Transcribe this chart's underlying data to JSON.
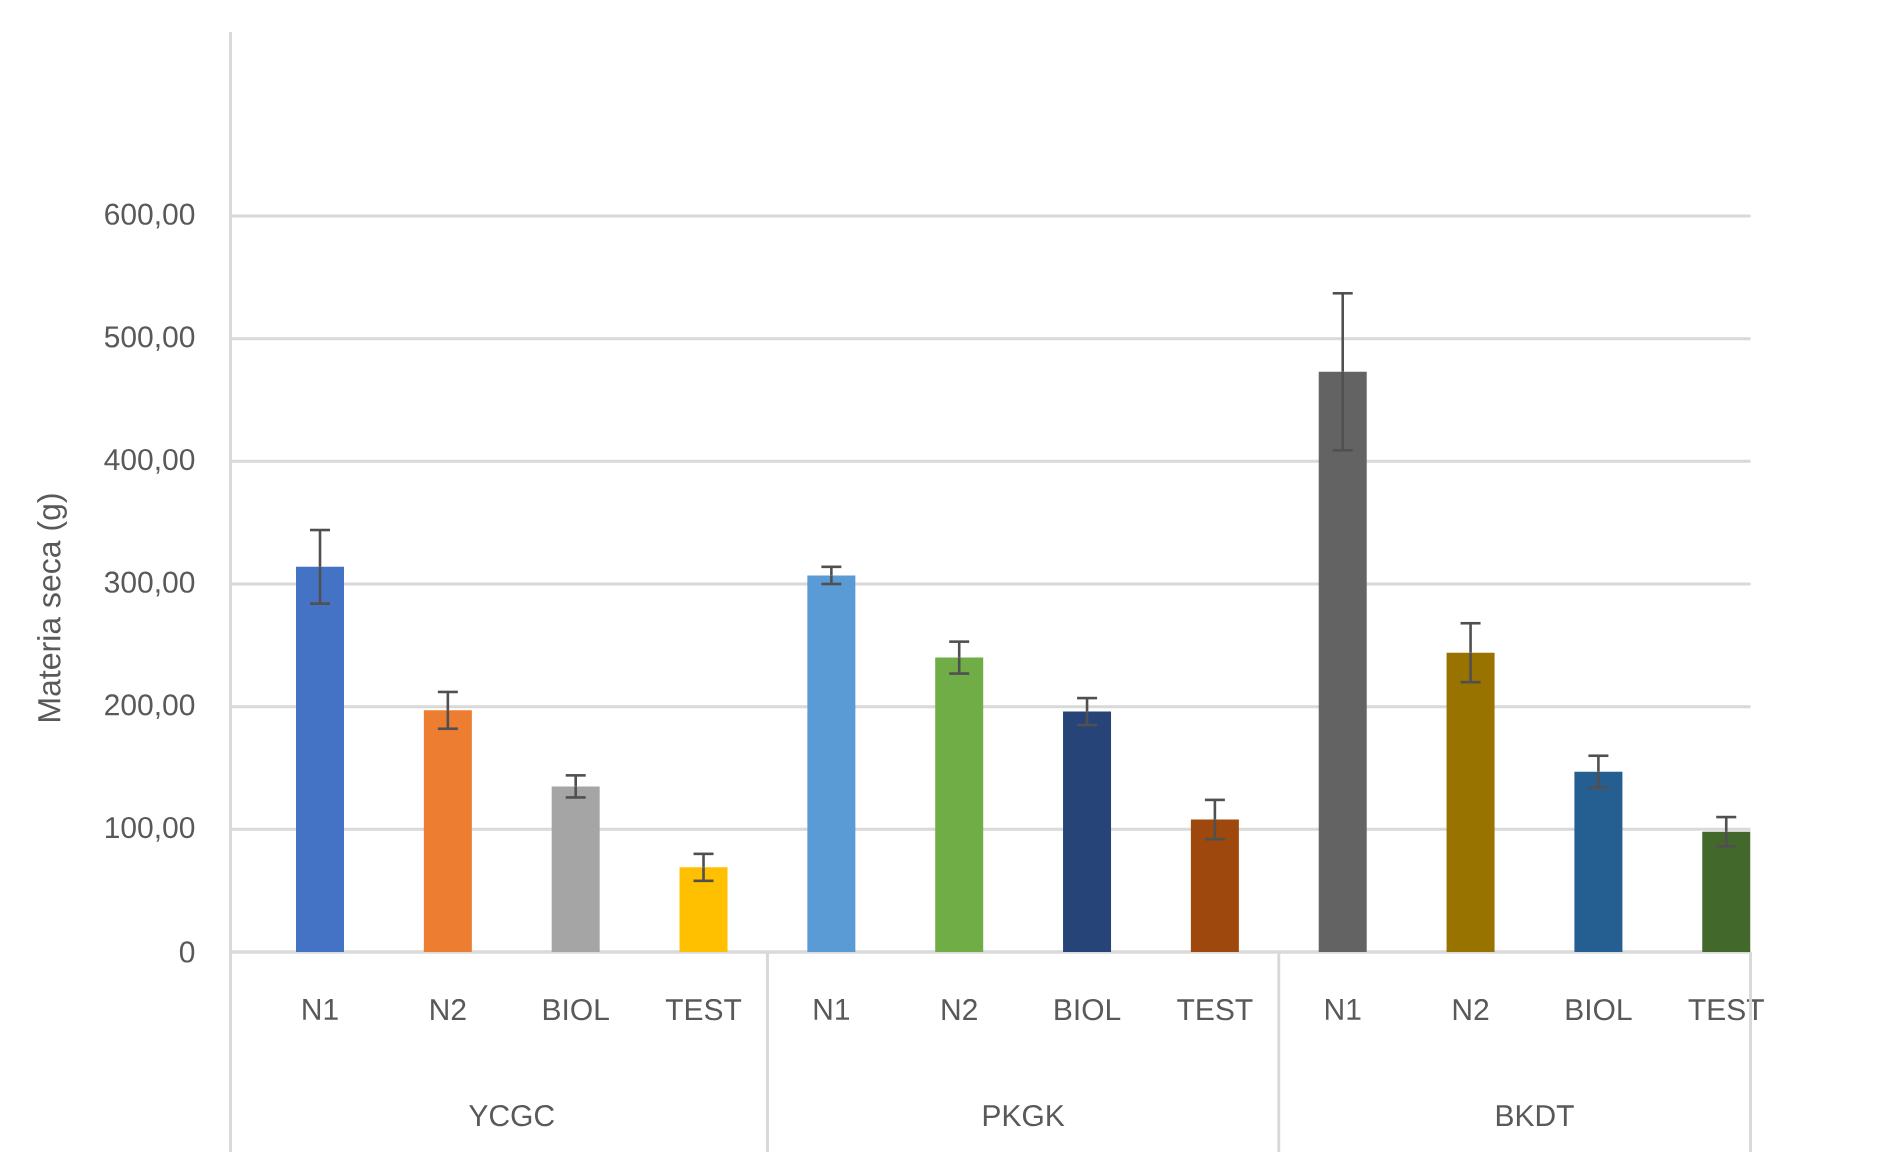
{
  "chart_data": {
    "type": "bar",
    "ylabel": "Materia seca (g)",
    "categories": [
      "N1",
      "N2",
      "BIOL",
      "TEST",
      "N1",
      "N2",
      "BIOL",
      "TEST",
      "N1",
      "N2",
      "BIOL",
      "TEST"
    ],
    "values": [
      314,
      197,
      135,
      69,
      307,
      240,
      196,
      108,
      473,
      244,
      147,
      98
    ],
    "errors": [
      30,
      15,
      9,
      11,
      7,
      13,
      11,
      16,
      64,
      24,
      13,
      12
    ],
    "colors": [
      "#4472c4",
      "#ed7d31",
      "#a5a5a5",
      "#ffc000",
      "#5b9bd5",
      "#70ad47",
      "#264478",
      "#9e480e",
      "#636363",
      "#997300",
      "#255e91",
      "#43682b"
    ],
    "ylim": [
      0,
      750
    ],
    "yticks": [
      {
        "value": 0,
        "label": "0"
      },
      {
        "value": 100,
        "label": "100,00"
      },
      {
        "value": 200,
        "label": "200,00"
      },
      {
        "value": 300,
        "label": "300,00"
      },
      {
        "value": 400,
        "label": "400,00"
      },
      {
        "value": 500,
        "label": "500,00"
      },
      {
        "value": 600,
        "label": "600,00"
      }
    ],
    "grid": "y",
    "annotations": [
      "YCGC",
      "PKGK",
      "BKDT"
    ]
  }
}
